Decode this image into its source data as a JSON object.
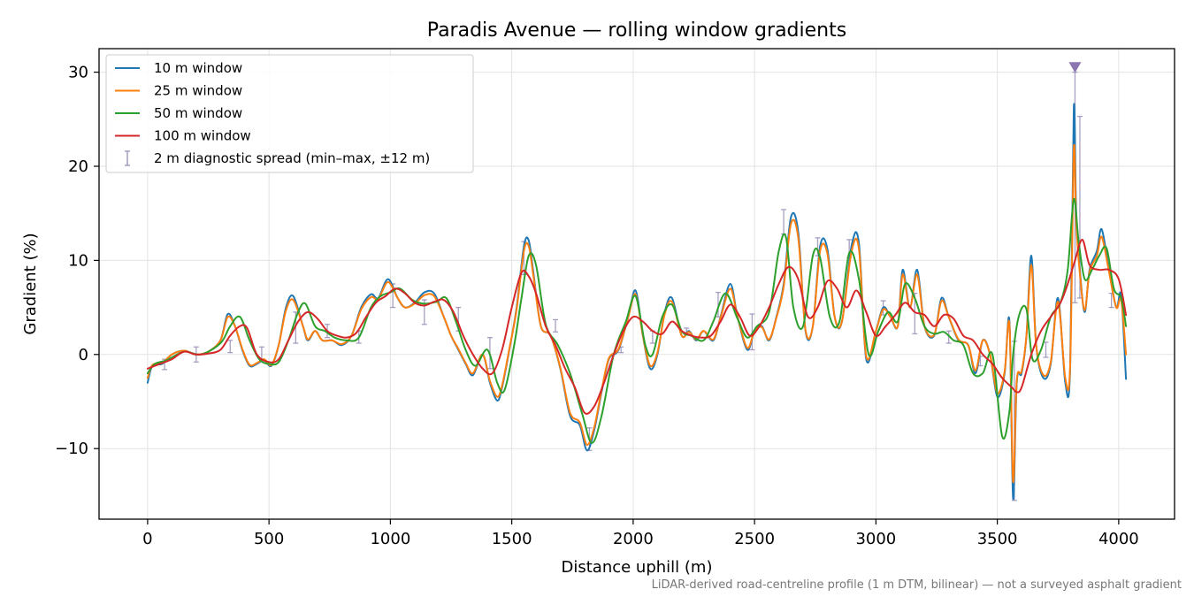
{
  "chart_data": {
    "type": "line",
    "title": "Paradis Avenue — rolling window gradients",
    "xlabel": "Distance uphill (m)",
    "ylabel": "Gradient (%)",
    "xlim": [
      -200,
      4230
    ],
    "ylim": [
      -17.5,
      32.5
    ],
    "xticks": [
      0,
      500,
      1000,
      1500,
      2000,
      2500,
      3000,
      3500,
      4000
    ],
    "yticks": [
      -10,
      0,
      10,
      20,
      30
    ],
    "xtick_labels": [
      "0",
      "500",
      "1000",
      "1500",
      "2000",
      "2500",
      "3000",
      "3500",
      "4000"
    ],
    "ytick_labels": [
      "−10",
      "0",
      "10",
      "20",
      "30"
    ],
    "grid": true,
    "legend_position": "top-left",
    "footnote": "LiDAR-derived road-centreline profile (1 m DTM, bilinear) — not a surveyed asphalt gradient",
    "series": [
      {
        "name": "10 m window",
        "color": "#1f77b4",
        "x": [
          0,
          20,
          60,
          100,
          150,
          200,
          250,
          300,
          330,
          360,
          390,
          420,
          450,
          480,
          510,
          540,
          570,
          600,
          640,
          660,
          690,
          720,
          760,
          800,
          840,
          880,
          920,
          950,
          990,
          1030,
          1060,
          1100,
          1140,
          1180,
          1220,
          1250,
          1280,
          1310,
          1340,
          1380,
          1410,
          1440,
          1460,
          1490,
          1520,
          1550,
          1570,
          1590,
          1620,
          1660,
          1700,
          1740,
          1780,
          1810,
          1840,
          1870,
          1900,
          1940,
          1980,
          2010,
          2040,
          2070,
          2100,
          2130,
          2160,
          2200,
          2230,
          2260,
          2290,
          2330,
          2360,
          2400,
          2430,
          2470,
          2500,
          2530,
          2560,
          2590,
          2620,
          2650,
          2680,
          2710,
          2740,
          2770,
          2800,
          2830,
          2860,
          2900,
          2930,
          2960,
          3000,
          3030,
          3060,
          3090,
          3110,
          3140,
          3170,
          3200,
          3240,
          3270,
          3300,
          3340,
          3380,
          3410,
          3440,
          3470,
          3500,
          3530,
          3550,
          3565,
          3580,
          3600,
          3620,
          3640,
          3660,
          3690,
          3720,
          3750,
          3780,
          3800,
          3815,
          3825,
          3840,
          3860,
          3880,
          3910,
          3930,
          3960,
          3990,
          4010,
          4030
        ],
        "y": [
          -3,
          -1.2,
          -1,
          0,
          0.4,
          0,
          0.3,
          1.5,
          4.3,
          3,
          0.5,
          -1.2,
          -1,
          -0.6,
          -1.2,
          1,
          5,
          6.2,
          3,
          1.5,
          2.5,
          1.5,
          1.5,
          1,
          2,
          5,
          6.4,
          6,
          8,
          6,
          5,
          5.5,
          6.6,
          6.5,
          4,
          2,
          0.5,
          -1,
          -2.2,
          0,
          -3,
          -4.9,
          -3.5,
          0.5,
          5,
          11.5,
          12.1,
          8.5,
          3,
          2,
          -1.5,
          -6.5,
          -7.5,
          -10.2,
          -8,
          -4,
          -0.5,
          0.5,
          4,
          6.8,
          2,
          -1.5,
          0,
          4.5,
          6,
          2,
          2.5,
          1.5,
          2.5,
          1.5,
          4,
          7.5,
          4,
          0.5,
          2.5,
          3,
          1.5,
          4,
          7.5,
          14.6,
          13,
          2.5,
          3,
          11.5,
          11.2,
          4,
          3.5,
          11.6,
          11.8,
          -0.5,
          2.5,
          5,
          4,
          3,
          9,
          5,
          9,
          3,
          2,
          6,
          4,
          1.5,
          1,
          -2,
          1.5,
          0,
          -4.5,
          -2,
          3.5,
          -15.3,
          -3,
          -2,
          2,
          10.5,
          1,
          -2.5,
          -1,
          6,
          -3,
          -1.5,
          26.2,
          15,
          9,
          4.5,
          9,
          11,
          13.3,
          9,
          5,
          6.3,
          -2.6
        ]
      },
      {
        "name": "25 m window",
        "color": "#ff7f0e",
        "x": [
          0,
          20,
          60,
          100,
          150,
          200,
          250,
          300,
          330,
          360,
          390,
          420,
          450,
          480,
          510,
          540,
          570,
          600,
          640,
          660,
          690,
          720,
          760,
          800,
          840,
          880,
          920,
          950,
          990,
          1030,
          1060,
          1100,
          1140,
          1180,
          1220,
          1250,
          1280,
          1310,
          1340,
          1380,
          1410,
          1440,
          1460,
          1490,
          1520,
          1550,
          1570,
          1590,
          1620,
          1660,
          1700,
          1740,
          1780,
          1810,
          1840,
          1870,
          1900,
          1940,
          1980,
          2010,
          2040,
          2070,
          2100,
          2130,
          2160,
          2200,
          2230,
          2260,
          2290,
          2330,
          2360,
          2400,
          2430,
          2470,
          2500,
          2530,
          2560,
          2590,
          2620,
          2650,
          2680,
          2710,
          2740,
          2770,
          2800,
          2830,
          2860,
          2900,
          2930,
          2960,
          3000,
          3030,
          3060,
          3090,
          3110,
          3140,
          3170,
          3200,
          3240,
          3270,
          3300,
          3340,
          3380,
          3410,
          3440,
          3470,
          3500,
          3530,
          3550,
          3565,
          3580,
          3600,
          3620,
          3640,
          3660,
          3690,
          3720,
          3750,
          3780,
          3800,
          3815,
          3825,
          3840,
          3860,
          3880,
          3910,
          3930,
          3960,
          3990,
          4010,
          4030
        ],
        "y": [
          -2.5,
          -1.1,
          -0.9,
          0,
          0.4,
          0,
          0.3,
          1.5,
          4,
          3,
          0.6,
          -1.1,
          -0.9,
          -0.5,
          -1.1,
          1,
          4.7,
          5.8,
          3,
          1.6,
          2.5,
          1.5,
          1.5,
          1.1,
          2,
          4.8,
          6.1,
          5.9,
          7.7,
          6,
          5,
          5.4,
          6.3,
          6.2,
          4,
          2,
          0.6,
          -0.9,
          -2,
          0,
          -2.8,
          -4.5,
          -3.3,
          0.6,
          4.8,
          11,
          11.5,
          8.2,
          3,
          2,
          -1.4,
          -6.2,
          -7.2,
          -9.6,
          -7.7,
          -3.8,
          -0.4,
          0.6,
          4,
          6.4,
          2,
          -1.2,
          0.2,
          4.3,
          5.6,
          2,
          2.4,
          1.6,
          2.5,
          1.6,
          3.9,
          7,
          4,
          0.7,
          2.5,
          2.9,
          1.6,
          3.9,
          7.2,
          13.9,
          12.4,
          2.6,
          3,
          11,
          10.7,
          4,
          3.5,
          11,
          11.2,
          -0.2,
          2.5,
          4.8,
          4,
          3,
          8.5,
          5,
          8.5,
          3,
          2.1,
          5.7,
          4,
          1.6,
          1,
          -1.7,
          1.5,
          0,
          -4.1,
          -1.8,
          3.2,
          -13.5,
          -2.8,
          -1.8,
          2,
          9.5,
          1,
          -2.2,
          -0.8,
          5.6,
          -2.5,
          -1.2,
          21.8,
          14,
          8.6,
          4.7,
          8.8,
          10.5,
          12.5,
          8.8,
          5,
          5.8,
          0
        ]
      },
      {
        "name": "50 m window",
        "color": "#2ca02c",
        "x": [
          0,
          30,
          80,
          150,
          220,
          300,
          340,
          380,
          420,
          460,
          500,
          540,
          580,
          620,
          650,
          690,
          730,
          770,
          820,
          870,
          920,
          960,
          1000,
          1040,
          1090,
          1140,
          1190,
          1230,
          1270,
          1310,
          1350,
          1400,
          1440,
          1470,
          1510,
          1540,
          1570,
          1600,
          1640,
          1690,
          1740,
          1790,
          1830,
          1870,
          1920,
          1970,
          2010,
          2050,
          2080,
          2120,
          2160,
          2200,
          2240,
          2290,
          2330,
          2380,
          2430,
          2470,
          2510,
          2560,
          2600,
          2630,
          2660,
          2700,
          2740,
          2770,
          2810,
          2850,
          2890,
          2930,
          2970,
          3010,
          3050,
          3090,
          3120,
          3160,
          3200,
          3240,
          3280,
          3320,
          3360,
          3400,
          3440,
          3480,
          3520,
          3550,
          3565,
          3590,
          3620,
          3645,
          3680,
          3720,
          3760,
          3790,
          3815,
          3835,
          3860,
          3890,
          3920,
          3950,
          3980,
          4010,
          4030
        ],
        "y": [
          -2,
          -1,
          -0.6,
          0.3,
          0,
          1.2,
          3,
          4,
          1.5,
          -0.5,
          -1,
          -0.8,
          1.5,
          4.5,
          5.4,
          3,
          2.5,
          1.8,
          1.5,
          1.8,
          5,
          6.2,
          6.6,
          7,
          5.8,
          5.4,
          5.6,
          6,
          3.5,
          0.5,
          -1.2,
          0.5,
          -3,
          -3.8,
          1,
          6,
          10.5,
          9.5,
          3.2,
          1,
          -2,
          -6.3,
          -9.4,
          -6.5,
          0,
          3.5,
          6.2,
          1,
          0,
          4,
          5.3,
          2.5,
          2,
          1.5,
          3.5,
          6.5,
          3.8,
          1.8,
          3,
          4.5,
          11,
          12.4,
          5,
          3,
          10.5,
          10.3,
          4,
          3.5,
          10.8,
          8,
          0,
          2.5,
          4.5,
          3.5,
          7.5,
          6,
          3,
          2.2,
          2.4,
          1.5,
          1,
          -2,
          -2,
          0,
          -8.7,
          -6,
          0,
          4.2,
          4.8,
          -0.5,
          0.5,
          4,
          5.5,
          9,
          16.5,
          12,
          8,
          9,
          10.5,
          11.3,
          7,
          6,
          3
        ]
      },
      {
        "name": "100 m window",
        "color": "#d62728",
        "x": [
          0,
          50,
          100,
          150,
          200,
          250,
          300,
          340,
          380,
          410,
          450,
          500,
          540,
          580,
          620,
          660,
          700,
          740,
          780,
          820,
          860,
          900,
          940,
          980,
          1020,
          1060,
          1100,
          1140,
          1180,
          1220,
          1260,
          1300,
          1340,
          1380,
          1420,
          1460,
          1500,
          1540,
          1570,
          1600,
          1640,
          1680,
          1720,
          1760,
          1800,
          1840,
          1880,
          1920,
          1960,
          2000,
          2040,
          2080,
          2120,
          2160,
          2200,
          2240,
          2280,
          2320,
          2360,
          2400,
          2440,
          2480,
          2520,
          2560,
          2600,
          2640,
          2680,
          2720,
          2760,
          2800,
          2840,
          2880,
          2920,
          2960,
          3000,
          3040,
          3080,
          3120,
          3160,
          3200,
          3240,
          3280,
          3320,
          3360,
          3400,
          3440,
          3480,
          3520,
          3560,
          3580,
          3600,
          3640,
          3680,
          3720,
          3760,
          3790,
          3820,
          3850,
          3880,
          3920,
          3960,
          4000,
          4030
        ],
        "y": [
          -1.5,
          -1,
          -0.5,
          0.3,
          0,
          0.1,
          0.5,
          2,
          3,
          2.8,
          0,
          -0.8,
          -0.5,
          1.5,
          3.5,
          4.5,
          3.8,
          2.5,
          2,
          1.8,
          2.3,
          4,
          5.5,
          6.2,
          7,
          6.5,
          5.5,
          5.2,
          5.6,
          5.8,
          4.5,
          2,
          0,
          -1.5,
          -2,
          0.5,
          5,
          8.7,
          8.3,
          6.5,
          3,
          1,
          -1.5,
          -3.5,
          -6.2,
          -5.5,
          -3,
          0,
          2.5,
          4,
          3.5,
          2.5,
          2.2,
          3.5,
          2.5,
          2,
          1.8,
          2,
          3.5,
          5.3,
          4,
          2,
          3,
          5,
          7.5,
          9.3,
          8,
          4,
          5,
          7.8,
          7,
          5,
          6.8,
          4.5,
          2,
          3,
          4.2,
          5.5,
          4.5,
          4.2,
          3,
          4.2,
          3.8,
          2,
          1.5,
          0,
          -1,
          -2.5,
          -3.5,
          -4,
          -3.5,
          0,
          2.5,
          4,
          5.5,
          7.5,
          10,
          12.2,
          9.5,
          9,
          9,
          8,
          4.2
        ]
      }
    ],
    "diagnostic_spread": {
      "name": "2 m diagnostic spread (min–max, ±12 m)",
      "color": "#9a8fb8",
      "points": [
        {
          "x": 70,
          "lo": -1.6,
          "hi": -0.5
        },
        {
          "x": 200,
          "lo": -0.8,
          "hi": 0.8
        },
        {
          "x": 340,
          "lo": 0.2,
          "hi": 1.5
        },
        {
          "x": 470,
          "lo": -0.5,
          "hi": 0.8
        },
        {
          "x": 610,
          "lo": 1.2,
          "hi": 4.5
        },
        {
          "x": 740,
          "lo": 1.8,
          "hi": 3.2
        },
        {
          "x": 870,
          "lo": 1.2,
          "hi": 2.5
        },
        {
          "x": 1010,
          "lo": 5,
          "hi": 7.5
        },
        {
          "x": 1140,
          "lo": 3.2,
          "hi": 5.8
        },
        {
          "x": 1280,
          "lo": 2.5,
          "hi": 5
        },
        {
          "x": 1410,
          "lo": -1.5,
          "hi": 1.8
        },
        {
          "x": 1550,
          "lo": 8.5,
          "hi": 12
        },
        {
          "x": 1680,
          "lo": 2.4,
          "hi": 3.7
        },
        {
          "x": 1820,
          "lo": -10.2,
          "hi": -7.8
        },
        {
          "x": 1950,
          "lo": 0.2,
          "hi": 0.8
        },
        {
          "x": 2080,
          "lo": 1.2,
          "hi": 2.5
        },
        {
          "x": 2220,
          "lo": 2.2,
          "hi": 2.8
        },
        {
          "x": 2350,
          "lo": 4,
          "hi": 6.6
        },
        {
          "x": 2490,
          "lo": 0.5,
          "hi": 4.3
        },
        {
          "x": 2620,
          "lo": 12.8,
          "hi": 15.4
        },
        {
          "x": 2760,
          "lo": 10.5,
          "hi": 12.4
        },
        {
          "x": 2890,
          "lo": 10.3,
          "hi": 12.2
        },
        {
          "x": 3030,
          "lo": 4.2,
          "hi": 5.7
        },
        {
          "x": 3160,
          "lo": 2.2,
          "hi": 6.5
        },
        {
          "x": 3300,
          "lo": 1.2,
          "hi": 2.5
        },
        {
          "x": 3430,
          "lo": -1.2,
          "hi": -0.2
        },
        {
          "x": 3570,
          "lo": -15.5,
          "hi": 1.4
        },
        {
          "x": 3700,
          "lo": -0.3,
          "hi": 1.3
        },
        {
          "x": 3820,
          "lo": 5.5,
          "hi": 30
        },
        {
          "x": 3840,
          "lo": 6,
          "hi": 25.3
        },
        {
          "x": 3970,
          "lo": 5,
          "hi": 6.5
        }
      ],
      "clip_marker": {
        "x": 3820,
        "y": 30.5,
        "color": "#8a77b0"
      }
    }
  }
}
